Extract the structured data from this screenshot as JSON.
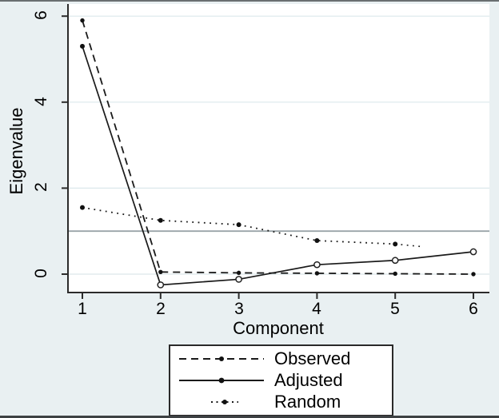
{
  "figure": {
    "xlabel": "Component",
    "ylabel": "Eigenvalue"
  },
  "chart_data": {
    "type": "line",
    "title": "",
    "xlabel": "Component",
    "ylabel": "Eigenvalue",
    "xtick_labels": [
      "1",
      "2",
      "3",
      "4",
      "5",
      "6"
    ],
    "xticks": [
      1,
      2,
      3,
      4,
      5,
      6
    ],
    "ytick_labels": [
      "6",
      "4",
      "2",
      "0"
    ],
    "yticks": [
      6,
      4,
      2,
      0
    ],
    "xlim": [
      0.82,
      6.2
    ],
    "ylim": [
      -0.43,
      6.26
    ],
    "grid": true,
    "reference_line_y": 1,
    "legend_position": "below-center",
    "series": [
      {
        "name": "Observed",
        "style": "dashed",
        "marker": "filled-dot",
        "x": [
          1,
          2,
          3,
          4,
          5,
          6
        ],
        "values": [
          5.9,
          0.05,
          0.03,
          0.02,
          0.01,
          0.0
        ]
      },
      {
        "name": "Adjusted",
        "style": "solid",
        "marker": "open-circle",
        "first_marker": "filled-dot",
        "x": [
          1,
          2,
          3,
          4,
          5,
          6
        ],
        "values": [
          5.3,
          -0.25,
          -0.12,
          0.22,
          0.32,
          0.52
        ]
      },
      {
        "name": "Random",
        "style": "dotted",
        "marker": "filled-dot",
        "x": [
          1,
          2,
          3,
          4,
          5
        ],
        "values": [
          1.55,
          1.25,
          1.15,
          0.78,
          0.7
        ],
        "trail_to": {
          "x": 5.34,
          "y": 0.64
        }
      }
    ],
    "legend": {
      "items": [
        {
          "label": "Observed"
        },
        {
          "label": "Adjusted"
        },
        {
          "label": "Random"
        }
      ]
    }
  },
  "colors": {
    "background": "#e9f0f2",
    "plot_background": "#ffffff",
    "gridline": "#dce8eb",
    "reference_line": "#9aa4a8",
    "axis": "#2b2b2b",
    "series_line": "#1a1a1a",
    "marker_fill": "#111111",
    "text": "#000000"
  }
}
